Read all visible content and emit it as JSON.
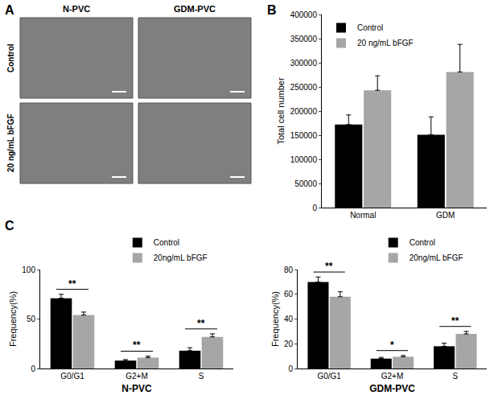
{
  "figure": {
    "panel_labels": [
      "A",
      "B",
      "C"
    ],
    "micrographs": {
      "columns": [
        "N-PVC",
        "GDM-PVC"
      ],
      "rows": [
        "Control",
        "20 ng/mL bFGF"
      ]
    }
  },
  "chart_data": [
    {
      "type": "bar",
      "y_label": "Total cell number",
      "categories": [
        "Normal",
        "GDM"
      ],
      "series": [
        {
          "name": "Control",
          "color": "#000000",
          "values": [
            172000,
            151000
          ],
          "errors": [
            20000,
            37000
          ]
        },
        {
          "name": "20 ng/mL bFGF",
          "color": "#a6a6a6",
          "values": [
            243000,
            281000
          ],
          "errors": [
            30000,
            57000
          ]
        }
      ],
      "ylim": [
        0,
        400000
      ],
      "yticks": [
        0,
        50000,
        100000,
        150000,
        200000,
        250000,
        300000,
        350000,
        400000
      ],
      "grid": false,
      "legend": "upper left"
    },
    {
      "type": "bar",
      "x_label": "N-PVC",
      "y_label": "Frequency(%)",
      "categories": [
        "G0/G1",
        "G2+M",
        "S"
      ],
      "series": [
        {
          "name": "Control",
          "color": "#000000",
          "values": [
            71,
            8,
            18
          ],
          "errors": [
            4,
            1,
            3
          ]
        },
        {
          "name": "20ng/mL bFGF",
          "color": "#a6a6a6",
          "values": [
            54,
            11,
            32
          ],
          "errors": [
            3,
            1.5,
            3
          ]
        }
      ],
      "ylim": [
        0,
        100
      ],
      "yticks": [
        0,
        50,
        100
      ],
      "grid": false,
      "legend": "top",
      "annotations": [
        {
          "category": "G0/G1",
          "text": "**"
        },
        {
          "category": "G2+M",
          "text": "**"
        },
        {
          "category": "S",
          "text": "**"
        }
      ]
    },
    {
      "type": "bar",
      "x_label": "GDM-PVC",
      "y_label": "Frequency(%)",
      "categories": [
        "G0/G1",
        "G2+M",
        "S"
      ],
      "series": [
        {
          "name": "Control",
          "color": "#000000",
          "values": [
            70,
            8,
            18
          ],
          "errors": [
            4,
            1,
            2.5
          ]
        },
        {
          "name": "20ng/mL bFGF",
          "color": "#a6a6a6",
          "values": [
            58,
            9.5,
            28
          ],
          "errors": [
            4,
            1,
            2
          ]
        }
      ],
      "ylim": [
        0,
        80
      ],
      "yticks": [
        0,
        20,
        40,
        60,
        80
      ],
      "grid": false,
      "legend": "top",
      "annotations": [
        {
          "category": "G0/G1",
          "text": "**"
        },
        {
          "category": "G2+M",
          "text": "*"
        },
        {
          "category": "S",
          "text": "**"
        }
      ]
    }
  ]
}
